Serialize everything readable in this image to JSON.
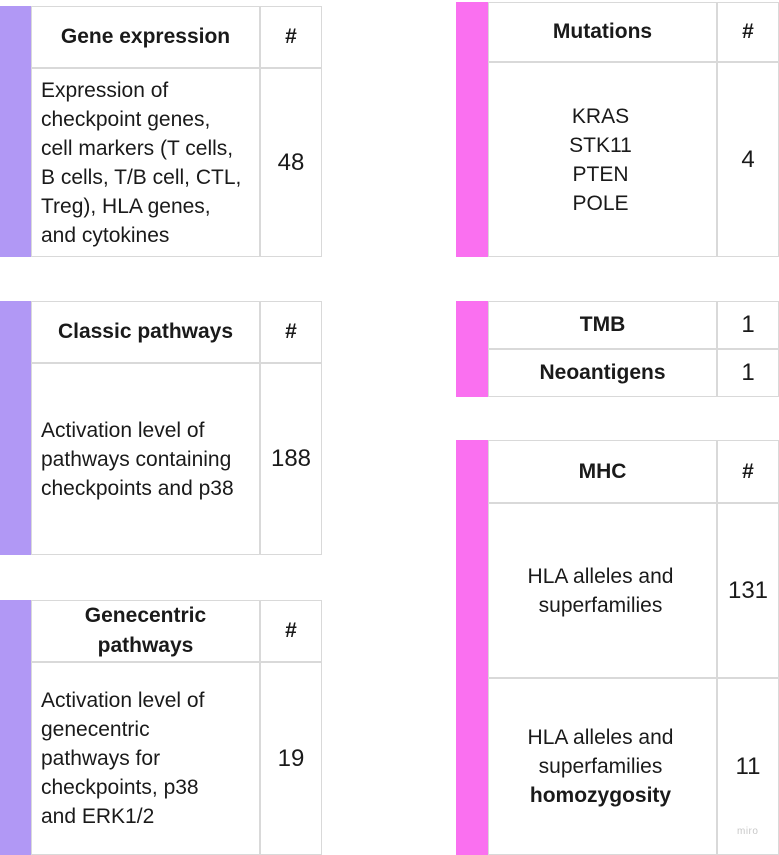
{
  "colors": {
    "left_accent": "#b198f5",
    "right_accent": "#fa70f0",
    "border": "#d9d9d9"
  },
  "gene_expression": {
    "title": "Gene expression",
    "hash": "#",
    "lines": [
      "Expression of",
      "checkpoint genes,",
      "cell markers (T cells,",
      "B cells, T/B cell, CTL,",
      "Treg), HLA genes,",
      "and cytokines"
    ],
    "count": "48"
  },
  "classic_pathways": {
    "title": "Classic pathways",
    "hash": "#",
    "lines": [
      "Activation level of",
      "pathways containing",
      "checkpoints and p38"
    ],
    "count": "188"
  },
  "genecentric_pathways": {
    "title_lines": [
      "Genecentric",
      "pathways"
    ],
    "hash": "#",
    "lines": [
      "Activation level of",
      "genecentric",
      "pathways for",
      "checkpoints, p38",
      "and ERK1/2"
    ],
    "count": "19"
  },
  "mutations": {
    "title": "Mutations",
    "hash": "#",
    "genes": [
      "KRAS",
      "STK11",
      "PTEN",
      "POLE"
    ],
    "count": "4"
  },
  "tmb": {
    "label": "TMB",
    "count": "1"
  },
  "neoantigens": {
    "label": "Neoantigens",
    "count": "1"
  },
  "mhc": {
    "title": "MHC",
    "hash": "#",
    "row1": {
      "lines": [
        "HLA alleles and",
        "superfamilies"
      ],
      "count": "131"
    },
    "row2": {
      "lines": [
        "HLA alleles and",
        "superfamilies"
      ],
      "bold_line": "homozygosity",
      "count": "11"
    }
  },
  "watermark": "miro"
}
